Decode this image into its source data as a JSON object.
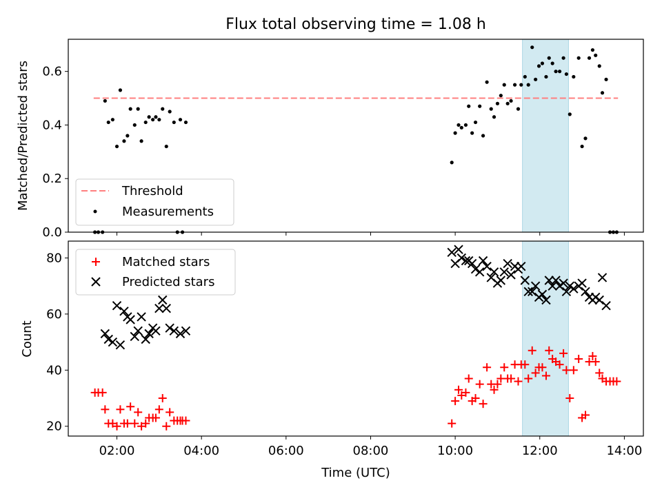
{
  "title": "Flux total observing time = 1.08 h",
  "xlabel": "Time (UTC)",
  "colors": {
    "threshold": "#ff7f7f",
    "measurements": "#000000",
    "matched": "#ff0000",
    "predicted": "#000000",
    "span": "#add8e6"
  },
  "chart_data": [
    {
      "type": "scatter",
      "ylabel": "Matched/Predicted stars",
      "ylim": [
        0,
        0.72
      ],
      "yticks": [
        0.0,
        0.2,
        0.4,
        0.6
      ],
      "ytick_labels": [
        "0.0",
        "0.2",
        "0.4",
        "0.6"
      ],
      "xlim": [
        0.85,
        14.45
      ],
      "xticks": [
        2,
        4,
        6,
        8,
        10,
        12,
        14
      ],
      "highlight_span": [
        11.59,
        12.68
      ],
      "threshold": {
        "name": "Threshold",
        "y": 0.5,
        "x": [
          1.45,
          13.85
        ]
      },
      "legend": {
        "position": "lower-left",
        "entries": [
          "Threshold",
          "Measurements"
        ]
      },
      "series": [
        {
          "name": "Measurements",
          "marker": "dot",
          "points": [
            [
              1.48,
              0.0
            ],
            [
              1.56,
              0.0
            ],
            [
              1.66,
              0.0
            ],
            [
              1.72,
              0.49
            ],
            [
              1.8,
              0.41
            ],
            [
              1.9,
              0.42
            ],
            [
              2.0,
              0.32
            ],
            [
              2.08,
              0.53
            ],
            [
              2.17,
              0.34
            ],
            [
              2.25,
              0.36
            ],
            [
              2.32,
              0.46
            ],
            [
              2.42,
              0.4
            ],
            [
              2.5,
              0.46
            ],
            [
              2.58,
              0.34
            ],
            [
              2.68,
              0.41
            ],
            [
              2.76,
              0.43
            ],
            [
              2.85,
              0.42
            ],
            [
              2.92,
              0.43
            ],
            [
              3.0,
              0.42
            ],
            [
              3.08,
              0.46
            ],
            [
              3.17,
              0.32
            ],
            [
              3.25,
              0.45
            ],
            [
              3.35,
              0.41
            ],
            [
              3.43,
              0.0
            ],
            [
              3.5,
              0.42
            ],
            [
              3.55,
              0.0
            ],
            [
              3.63,
              0.41
            ],
            [
              9.92,
              0.26
            ],
            [
              10.0,
              0.37
            ],
            [
              10.08,
              0.4
            ],
            [
              10.15,
              0.39
            ],
            [
              10.25,
              0.4
            ],
            [
              10.32,
              0.47
            ],
            [
              10.4,
              0.37
            ],
            [
              10.48,
              0.41
            ],
            [
              10.58,
              0.47
            ],
            [
              10.66,
              0.36
            ],
            [
              10.75,
              0.56
            ],
            [
              10.85,
              0.46
            ],
            [
              10.92,
              0.43
            ],
            [
              11.0,
              0.48
            ],
            [
              11.08,
              0.51
            ],
            [
              11.16,
              0.55
            ],
            [
              11.24,
              0.48
            ],
            [
              11.32,
              0.49
            ],
            [
              11.41,
              0.55
            ],
            [
              11.49,
              0.46
            ],
            [
              11.56,
              0.55
            ],
            [
              11.65,
              0.58
            ],
            [
              11.73,
              0.55
            ],
            [
              11.82,
              0.69
            ],
            [
              11.9,
              0.57
            ],
            [
              11.98,
              0.62
            ],
            [
              12.06,
              0.63
            ],
            [
              12.15,
              0.58
            ],
            [
              12.22,
              0.65
            ],
            [
              12.3,
              0.63
            ],
            [
              12.38,
              0.6
            ],
            [
              12.47,
              0.6
            ],
            [
              12.56,
              0.65
            ],
            [
              12.63,
              0.59
            ],
            [
              12.71,
              0.44
            ],
            [
              12.8,
              0.58
            ],
            [
              12.92,
              0.65
            ],
            [
              13.0,
              0.32
            ],
            [
              13.08,
              0.35
            ],
            [
              13.17,
              0.65
            ],
            [
              13.25,
              0.68
            ],
            [
              13.32,
              0.66
            ],
            [
              13.41,
              0.62
            ],
            [
              13.48,
              0.52
            ],
            [
              13.57,
              0.57
            ],
            [
              13.66,
              0.0
            ],
            [
              13.74,
              0.0
            ],
            [
              13.82,
              0.0
            ]
          ]
        }
      ]
    },
    {
      "type": "scatter",
      "ylabel": "Count",
      "xlabel": "Time (UTC)",
      "ylim": [
        16.5,
        86
      ],
      "yticks": [
        20,
        40,
        60,
        80
      ],
      "ytick_labels": [
        "20",
        "40",
        "60",
        "80"
      ],
      "xlim": [
        0.85,
        14.45
      ],
      "xticks": [
        2,
        4,
        6,
        8,
        10,
        12,
        14
      ],
      "xtick_labels": [
        "02:00",
        "04:00",
        "06:00",
        "08:00",
        "10:00",
        "12:00",
        "14:00"
      ],
      "highlight_span": [
        11.59,
        12.68
      ],
      "legend": {
        "position": "upper-left",
        "entries": [
          "Matched stars",
          "Predicted stars"
        ]
      },
      "series": [
        {
          "name": "Matched stars",
          "marker": "plus",
          "points": [
            [
              1.48,
              32
            ],
            [
              1.56,
              32
            ],
            [
              1.66,
              32
            ],
            [
              1.72,
              26
            ],
            [
              1.8,
              21
            ],
            [
              1.9,
              21
            ],
            [
              2.0,
              20
            ],
            [
              2.08,
              26
            ],
            [
              2.17,
              21
            ],
            [
              2.25,
              21
            ],
            [
              2.32,
              27
            ],
            [
              2.42,
              21
            ],
            [
              2.5,
              25
            ],
            [
              2.58,
              20
            ],
            [
              2.68,
              21
            ],
            [
              2.76,
              23
            ],
            [
              2.85,
              23
            ],
            [
              2.92,
              23
            ],
            [
              3.0,
              26
            ],
            [
              3.08,
              30
            ],
            [
              3.17,
              20
            ],
            [
              3.25,
              25
            ],
            [
              3.35,
              22
            ],
            [
              3.43,
              22
            ],
            [
              3.5,
              22
            ],
            [
              3.55,
              22
            ],
            [
              3.63,
              22
            ],
            [
              9.92,
              21
            ],
            [
              10.0,
              29
            ],
            [
              10.08,
              33
            ],
            [
              10.15,
              31
            ],
            [
              10.25,
              32
            ],
            [
              10.32,
              37
            ],
            [
              10.4,
              29
            ],
            [
              10.48,
              30
            ],
            [
              10.58,
              35
            ],
            [
              10.66,
              28
            ],
            [
              10.75,
              41
            ],
            [
              10.85,
              35
            ],
            [
              10.92,
              33
            ],
            [
              11.0,
              35
            ],
            [
              11.08,
              37
            ],
            [
              11.16,
              41
            ],
            [
              11.24,
              37
            ],
            [
              11.32,
              37
            ],
            [
              11.41,
              42
            ],
            [
              11.49,
              36
            ],
            [
              11.56,
              42
            ],
            [
              11.65,
              42
            ],
            [
              11.73,
              37
            ],
            [
              11.82,
              47
            ],
            [
              11.9,
              39
            ],
            [
              11.98,
              41
            ],
            [
              12.06,
              41
            ],
            [
              12.15,
              38
            ],
            [
              12.22,
              47
            ],
            [
              12.3,
              44
            ],
            [
              12.38,
              43
            ],
            [
              12.47,
              42
            ],
            [
              12.56,
              46
            ],
            [
              12.63,
              40
            ],
            [
              12.71,
              30
            ],
            [
              12.8,
              40
            ],
            [
              12.92,
              44
            ],
            [
              13.0,
              23
            ],
            [
              13.08,
              24
            ],
            [
              13.17,
              43
            ],
            [
              13.25,
              45
            ],
            [
              13.32,
              43
            ],
            [
              13.41,
              39
            ],
            [
              13.48,
              37
            ],
            [
              13.57,
              36
            ],
            [
              13.66,
              36
            ],
            [
              13.74,
              36
            ],
            [
              13.82,
              36
            ]
          ]
        },
        {
          "name": "Predicted stars",
          "marker": "x",
          "points": [
            [
              1.72,
              53
            ],
            [
              1.8,
              51
            ],
            [
              1.9,
              50
            ],
            [
              2.0,
              63
            ],
            [
              2.08,
              49
            ],
            [
              2.17,
              61
            ],
            [
              2.25,
              59
            ],
            [
              2.32,
              58
            ],
            [
              2.42,
              52
            ],
            [
              2.5,
              54
            ],
            [
              2.58,
              59
            ],
            [
              2.68,
              51
            ],
            [
              2.76,
              53
            ],
            [
              2.85,
              55
            ],
            [
              2.92,
              54
            ],
            [
              3.0,
              62
            ],
            [
              3.08,
              65
            ],
            [
              3.17,
              62
            ],
            [
              3.25,
              55
            ],
            [
              3.35,
              54
            ],
            [
              3.5,
              53
            ],
            [
              3.63,
              54
            ],
            [
              9.92,
              82
            ],
            [
              10.0,
              78
            ],
            [
              10.08,
              83
            ],
            [
              10.15,
              80
            ],
            [
              10.25,
              79
            ],
            [
              10.32,
              79
            ],
            [
              10.4,
              78
            ],
            [
              10.48,
              76
            ],
            [
              10.58,
              75
            ],
            [
              10.66,
              79
            ],
            [
              10.75,
              77
            ],
            [
              10.85,
              73
            ],
            [
              10.92,
              75
            ],
            [
              11.0,
              71
            ],
            [
              11.08,
              72
            ],
            [
              11.16,
              75
            ],
            [
              11.24,
              78
            ],
            [
              11.32,
              74
            ],
            [
              11.41,
              77
            ],
            [
              11.49,
              76
            ],
            [
              11.56,
              77
            ],
            [
              11.65,
              72
            ],
            [
              11.73,
              68
            ],
            [
              11.82,
              68
            ],
            [
              11.9,
              70
            ],
            [
              11.98,
              66
            ],
            [
              12.06,
              67
            ],
            [
              12.15,
              65
            ],
            [
              12.22,
              72
            ],
            [
              12.3,
              70
            ],
            [
              12.38,
              72
            ],
            [
              12.47,
              70
            ],
            [
              12.56,
              71
            ],
            [
              12.63,
              68
            ],
            [
              12.71,
              70
            ],
            [
              12.8,
              69
            ],
            [
              12.92,
              70
            ],
            [
              13.0,
              71
            ],
            [
              13.08,
              68
            ],
            [
              13.17,
              66
            ],
            [
              13.25,
              65
            ],
            [
              13.32,
              66
            ],
            [
              13.41,
              65
            ],
            [
              13.48,
              73
            ],
            [
              13.57,
              63
            ]
          ]
        }
      ]
    }
  ]
}
